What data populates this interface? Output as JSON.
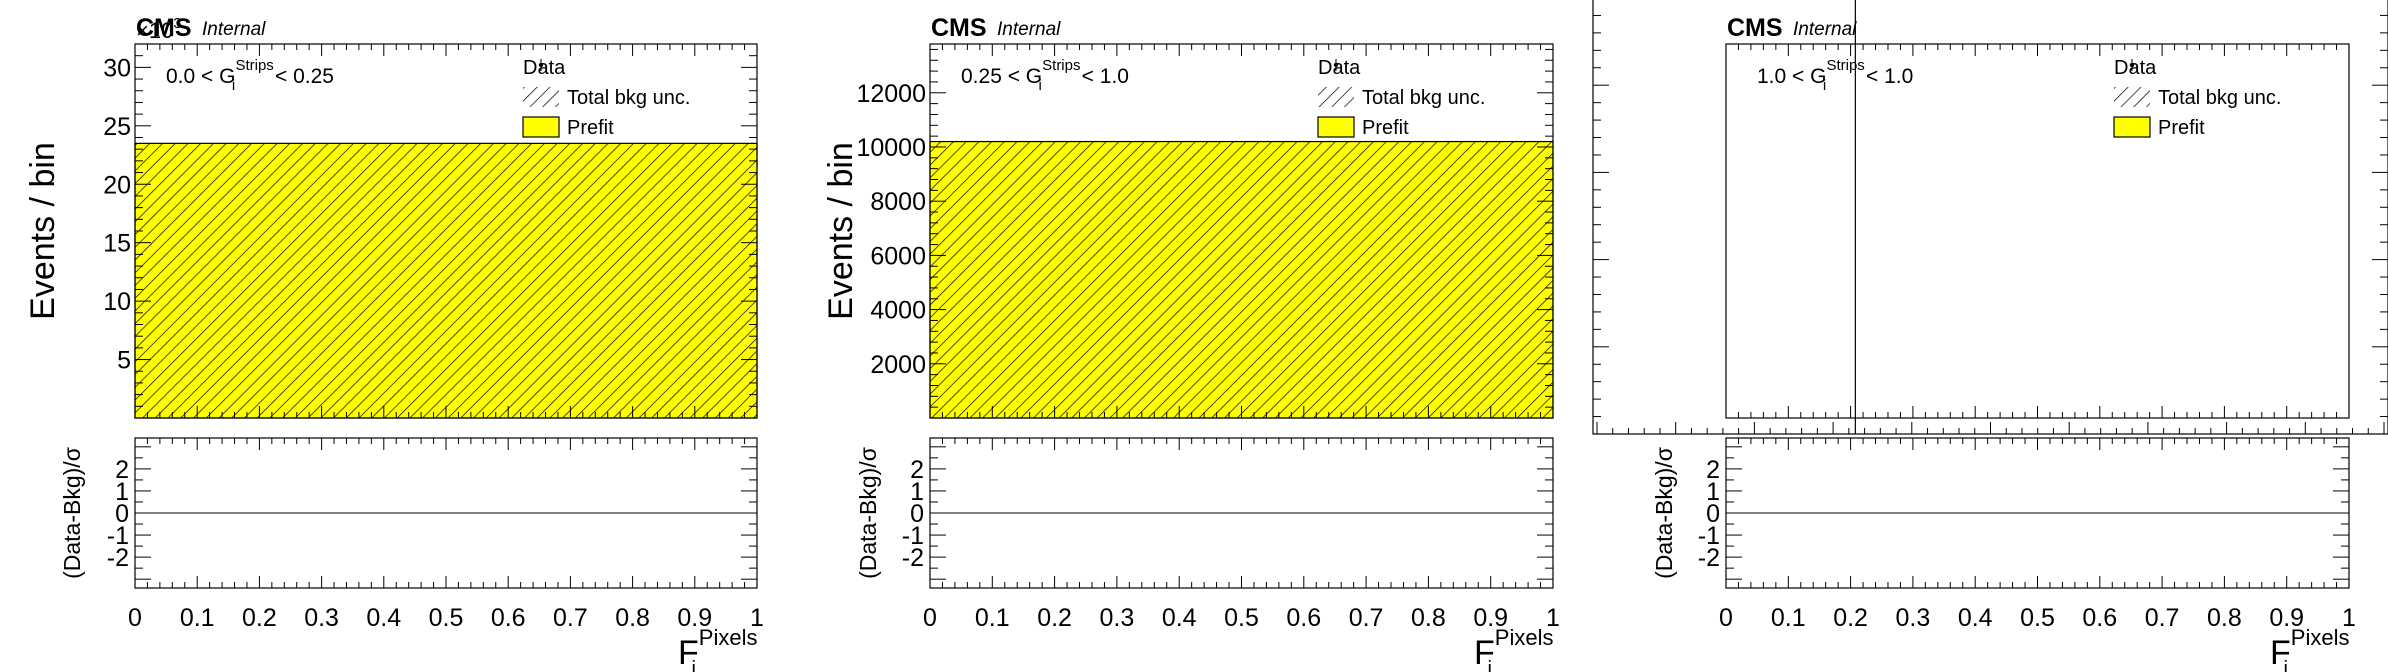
{
  "chart_data": [
    {
      "type": "bar",
      "experiment": "CMS",
      "status": "Internal",
      "multiplier": "×10",
      "multiplier_exp": "3",
      "region": {
        "pre": "0.0 < G",
        "sup": "Strips",
        "sub": "i",
        "post": " < 0.25"
      },
      "ylabel": "Events / bin",
      "ratio_ylabel": "(Data-Bkg)/σ",
      "xlabel": {
        "main": "F",
        "sup": "Pixels",
        "sub": "i"
      },
      "x_range": [
        0,
        1
      ],
      "ylim": [
        0,
        32
      ],
      "x_ticks": [
        "0",
        "0.1",
        "0.2",
        "0.3",
        "0.4",
        "0.5",
        "0.6",
        "0.7",
        "0.8",
        "0.9",
        "1"
      ],
      "y_ticks": [
        5,
        10,
        15,
        20,
        25,
        30
      ],
      "ratio_ylim": [
        -3.4,
        3.4
      ],
      "ratio_ticks": [
        -2,
        -1,
        0,
        1,
        2
      ],
      "bins": [
        {
          "x_low": 0,
          "x_high": 1,
          "prefit": 23.5
        }
      ],
      "legend": [
        {
          "label": "Data",
          "style": "marker"
        },
        {
          "label": "Total bkg unc.",
          "style": "hatch"
        },
        {
          "label": "Prefit",
          "style": "fill"
        }
      ]
    },
    {
      "type": "bar",
      "experiment": "CMS",
      "status": "Internal",
      "multiplier": "",
      "multiplier_exp": "",
      "region": {
        "pre": "0.25 < G",
        "sup": "Strips",
        "sub": "i",
        "post": " < 1.0"
      },
      "ylabel": "Events / bin",
      "ratio_ylabel": "(Data-Bkg)/σ",
      "xlabel": {
        "main": "F",
        "sup": "Pixels",
        "sub": "i"
      },
      "x_range": [
        0,
        1
      ],
      "ylim": [
        0,
        13800
      ],
      "x_ticks": [
        "0",
        "0.1",
        "0.2",
        "0.3",
        "0.4",
        "0.5",
        "0.6",
        "0.7",
        "0.8",
        "0.9",
        "1"
      ],
      "y_ticks": [
        2000,
        4000,
        6000,
        8000,
        10000,
        12000
      ],
      "ratio_ylim": [
        -3.4,
        3.4
      ],
      "ratio_ticks": [
        -2,
        -1,
        0,
        1,
        2
      ],
      "bins": [
        {
          "x_low": 0,
          "x_high": 1,
          "prefit": 10200
        }
      ],
      "legend": [
        {
          "label": "Data",
          "style": "marker"
        },
        {
          "label": "Total bkg unc.",
          "style": "hatch"
        },
        {
          "label": "Prefit",
          "style": "fill"
        }
      ]
    },
    {
      "type": "bar",
      "experiment": "CMS",
      "status": "Internal",
      "multiplier": "",
      "multiplier_exp": "",
      "region": {
        "pre": "1.0 < G",
        "sup": "Strips",
        "sub": "i",
        "post": " < 1.0"
      },
      "ylabel": "",
      "ratio_ylabel": "(Data-Bkg)/σ",
      "xlabel": {
        "main": "F",
        "sup": "Pixels",
        "sub": "i"
      },
      "x_range": [
        0,
        1
      ],
      "ylim": [
        0,
        1
      ],
      "x_ticks": [
        "0",
        "0.1",
        "0.2",
        "0.3",
        "0.4",
        "0.5",
        "0.6",
        "0.7",
        "0.8",
        "0.9",
        "1"
      ],
      "y_ticks": [],
      "ratio_ylim": [
        -3.4,
        3.4
      ],
      "ratio_ticks": [
        -2,
        -1,
        0,
        1,
        2
      ],
      "bins": [],
      "legend": [
        {
          "label": "Data",
          "style": "marker"
        },
        {
          "label": "Total bkg unc.",
          "style": "hatch"
        },
        {
          "label": "Prefit",
          "style": "fill"
        }
      ]
    }
  ]
}
